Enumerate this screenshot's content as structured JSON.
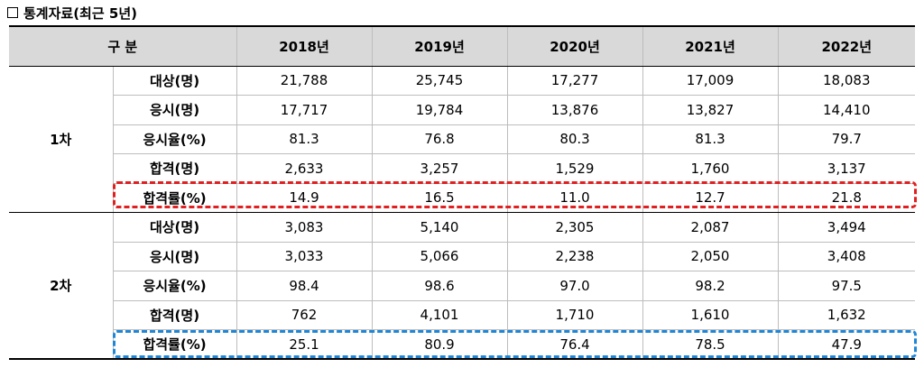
{
  "title": "통계자료(최근 5년)",
  "header": {
    "category": "구 분",
    "years": [
      "2018년",
      "2019년",
      "2020년",
      "2021년",
      "2022년"
    ]
  },
  "rounds": [
    {
      "label": "1차",
      "rows": [
        {
          "metric": "대상(명)",
          "values": [
            "21,788",
            "25,745",
            "17,277",
            "17,009",
            "18,083"
          ]
        },
        {
          "metric": "응시(명)",
          "values": [
            "17,717",
            "19,784",
            "13,876",
            "13,827",
            "14,410"
          ]
        },
        {
          "metric": "응시율(%)",
          "values": [
            "81.3",
            "76.8",
            "80.3",
            "81.3",
            "79.7"
          ]
        },
        {
          "metric": "합격(명)",
          "values": [
            "2,633",
            "3,257",
            "1,529",
            "1,760",
            "3,137"
          ]
        },
        {
          "metric": "합격률(%)",
          "values": [
            "14.9",
            "16.5",
            "11.0",
            "12.7",
            "21.8"
          ]
        }
      ]
    },
    {
      "label": "2차",
      "rows": [
        {
          "metric": "대상(명)",
          "values": [
            "3,083",
            "5,140",
            "2,305",
            "2,087",
            "3,494"
          ]
        },
        {
          "metric": "응시(명)",
          "values": [
            "3,033",
            "5,066",
            "2,238",
            "2,050",
            "3,408"
          ]
        },
        {
          "metric": "응시율(%)",
          "values": [
            "98.4",
            "98.6",
            "97.0",
            "98.2",
            "97.5"
          ]
        },
        {
          "metric": "합격(명)",
          "values": [
            "762",
            "4,101",
            "1,710",
            "1,610",
            "1,632"
          ]
        },
        {
          "metric": "합격률(%)",
          "values": [
            "25.1",
            "80.9",
            "76.4",
            "78.5",
            "47.9"
          ]
        }
      ]
    }
  ],
  "colors": {
    "highlight_round1": "#e02020",
    "highlight_round2": "#1f86d6",
    "header_bg": "#d9d9d9"
  }
}
